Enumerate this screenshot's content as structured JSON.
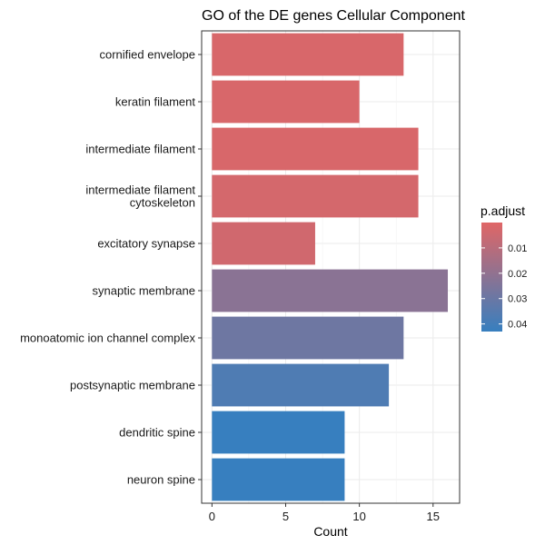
{
  "chart_data": {
    "type": "bar",
    "orientation": "horizontal",
    "title": "GO of the DE genes Cellular Component",
    "xlabel": "Count",
    "ylabel": "",
    "xlim": [
      -0.7,
      16.8
    ],
    "xticks": [
      0,
      5,
      10,
      15
    ],
    "grid": true,
    "categories": [
      "cornified envelope",
      "keratin filament",
      "intermediate filament",
      "intermediate filament\ncytoskeleton",
      "excitatory synapse",
      "synaptic membrane",
      "monoatomic ion channel complex",
      "postsynaptic membrane",
      "dendritic spine",
      "neuron spine"
    ],
    "values": [
      13,
      10,
      14,
      14,
      7,
      16,
      13,
      12,
      9,
      9
    ],
    "p_adjust": [
      0.002,
      0.002,
      0.002,
      0.003,
      0.004,
      0.022,
      0.029,
      0.037,
      0.043,
      0.043
    ],
    "legend": {
      "title": "p.adjust",
      "position": "right",
      "range": [
        0.0,
        0.043
      ],
      "ticks": [
        0.01,
        0.02,
        0.03,
        0.04
      ],
      "tick_labels": [
        "0.01",
        "0.02",
        "0.03",
        "0.04"
      ],
      "color_low": "#e06666",
      "color_high": "#377fbf"
    },
    "colors": {
      "panel_border": "#333333",
      "grid": "#ebebeb"
    }
  }
}
